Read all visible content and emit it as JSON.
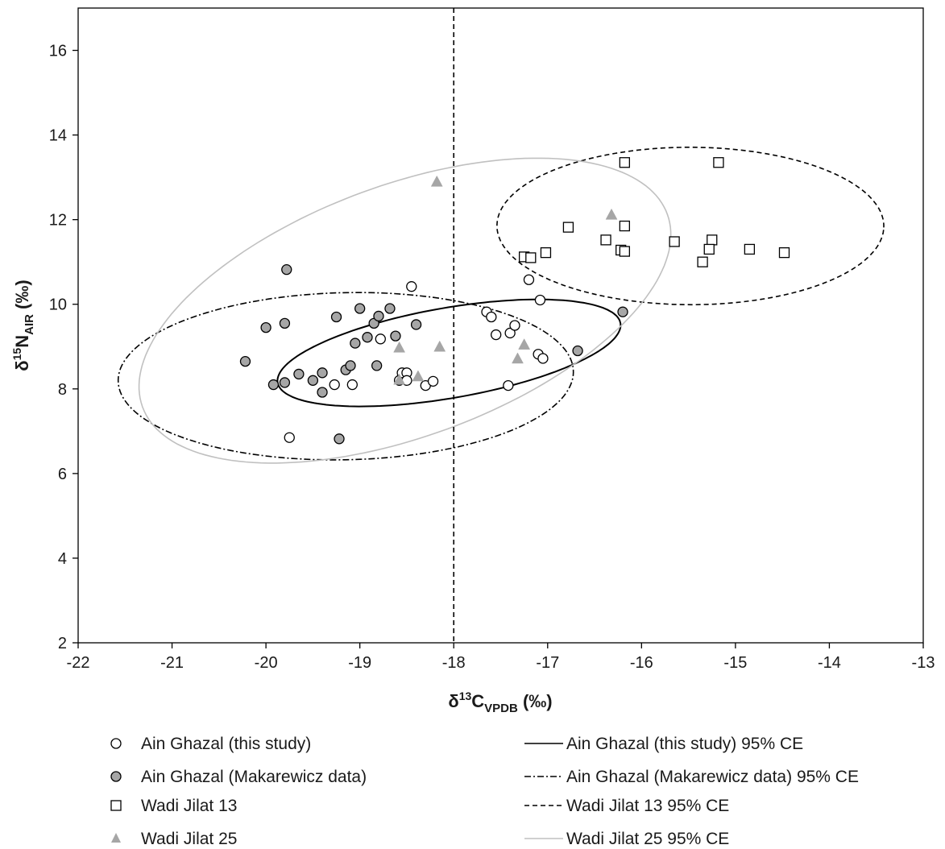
{
  "chart_data": {
    "type": "scatter",
    "xlabel": {
      "main": "δ",
      "sup": "13",
      "element": "C",
      "sub": "VPDB",
      "unit": " (‰)"
    },
    "ylabel": {
      "main": "δ",
      "sup": "15",
      "element": "N",
      "sub": "AIR",
      "unit": " (‰)"
    },
    "xlim": [
      -22,
      -13
    ],
    "ylim": [
      2,
      17
    ],
    "x_ticks": [
      -22,
      -21,
      -20,
      -19,
      -18,
      -17,
      -16,
      -15,
      -14,
      -13
    ],
    "y_ticks": [
      2,
      4,
      6,
      8,
      10,
      12,
      14,
      16
    ],
    "grid": false,
    "reference_line": {
      "axis": "x",
      "value": -18,
      "style": "dashed"
    },
    "legend_position": "bottom",
    "series": [
      {
        "name": "Ain Ghazal (this study)",
        "marker": "circle",
        "fill": "#ffffff",
        "stroke": "#000000",
        "points": [
          [
            -19.75,
            6.85
          ],
          [
            -19.27,
            8.1
          ],
          [
            -19.08,
            8.1
          ],
          [
            -18.78,
            9.18
          ],
          [
            -18.58,
            8.2
          ],
          [
            -18.55,
            8.38
          ],
          [
            -18.5,
            8.38
          ],
          [
            -18.5,
            8.2
          ],
          [
            -18.3,
            8.08
          ],
          [
            -18.22,
            8.18
          ],
          [
            -18.45,
            10.42
          ],
          [
            -17.65,
            9.82
          ],
          [
            -17.6,
            9.7
          ],
          [
            -17.55,
            9.28
          ],
          [
            -17.4,
            9.32
          ],
          [
            -17.35,
            9.5
          ],
          [
            -17.42,
            8.08
          ],
          [
            -17.2,
            10.58
          ],
          [
            -17.08,
            10.1
          ],
          [
            -17.1,
            8.82
          ],
          [
            -17.05,
            8.72
          ]
        ]
      },
      {
        "name": "Ain Ghazal (Makarewicz data)",
        "marker": "circle",
        "fill": "#a6a6a6",
        "stroke": "#000000",
        "points": [
          [
            -20.22,
            8.65
          ],
          [
            -20.0,
            9.45
          ],
          [
            -19.8,
            9.55
          ],
          [
            -19.78,
            10.82
          ],
          [
            -19.92,
            8.1
          ],
          [
            -19.8,
            8.15
          ],
          [
            -19.65,
            8.35
          ],
          [
            -19.5,
            8.2
          ],
          [
            -19.4,
            8.38
          ],
          [
            -19.4,
            7.92
          ],
          [
            -19.25,
            9.7
          ],
          [
            -19.15,
            8.45
          ],
          [
            -19.1,
            8.55
          ],
          [
            -19.05,
            9.08
          ],
          [
            -19.0,
            9.9
          ],
          [
            -18.92,
            9.22
          ],
          [
            -18.85,
            9.55
          ],
          [
            -18.8,
            9.72
          ],
          [
            -18.82,
            8.55
          ],
          [
            -18.68,
            9.9
          ],
          [
            -18.62,
            9.25
          ],
          [
            -18.4,
            9.52
          ],
          [
            -19.22,
            6.82
          ],
          [
            -16.68,
            8.9
          ],
          [
            -16.2,
            9.82
          ]
        ]
      },
      {
        "name": "Wadi Jilat 13",
        "marker": "square",
        "fill": "#ffffff",
        "stroke": "#000000",
        "points": [
          [
            -16.18,
            13.35
          ],
          [
            -15.18,
            13.35
          ],
          [
            -16.78,
            11.82
          ],
          [
            -16.18,
            11.85
          ],
          [
            -16.38,
            11.52
          ],
          [
            -16.22,
            11.28
          ],
          [
            -16.18,
            11.25
          ],
          [
            -15.65,
            11.48
          ],
          [
            -15.25,
            11.52
          ],
          [
            -15.28,
            11.3
          ],
          [
            -15.35,
            11.0
          ],
          [
            -14.85,
            11.3
          ],
          [
            -14.48,
            11.22
          ],
          [
            -17.02,
            11.22
          ],
          [
            -17.25,
            11.12
          ],
          [
            -17.18,
            11.1
          ]
        ]
      },
      {
        "name": "Wadi Jilat 25",
        "marker": "triangle",
        "fill": "#a6a6a6",
        "stroke": "#a6a6a6",
        "points": [
          [
            -18.18,
            12.9
          ],
          [
            -16.32,
            12.12
          ],
          [
            -18.58,
            8.98
          ],
          [
            -18.15,
            9.0
          ],
          [
            -17.25,
            9.05
          ],
          [
            -17.32,
            8.72
          ],
          [
            -18.38,
            8.3
          ],
          [
            -18.58,
            8.22
          ]
        ]
      }
    ],
    "ellipses": [
      {
        "name": "Ain Ghazal (this study) 95% CE",
        "style": "solid",
        "color": "#000000",
        "cx": -18.05,
        "cy": 8.85,
        "rx": 1.987,
        "ry": 0.994,
        "angle_deg": 27
      },
      {
        "name": "Ain Ghazal (Makarewicz data) 95% CE",
        "style": "dashdot",
        "color": "#000000",
        "cx": -19.15,
        "cy": 8.3,
        "rx": 2.43,
        "ry": 1.97,
        "angle_deg": 7
      },
      {
        "name": "Wadi Jilat 13 95% CE",
        "style": "dashed",
        "color": "#000000",
        "cx": -15.48,
        "cy": 11.85,
        "rx": 2.06,
        "ry": 1.86,
        "angle_deg": -1
      },
      {
        "name": "Wadi Jilat 25 95% CE",
        "style": "solid",
        "color": "#c0c0c0",
        "cx": -18.52,
        "cy": 9.85,
        "rx": 4.02,
        "ry": 2.2,
        "angle_deg": 58
      }
    ]
  }
}
